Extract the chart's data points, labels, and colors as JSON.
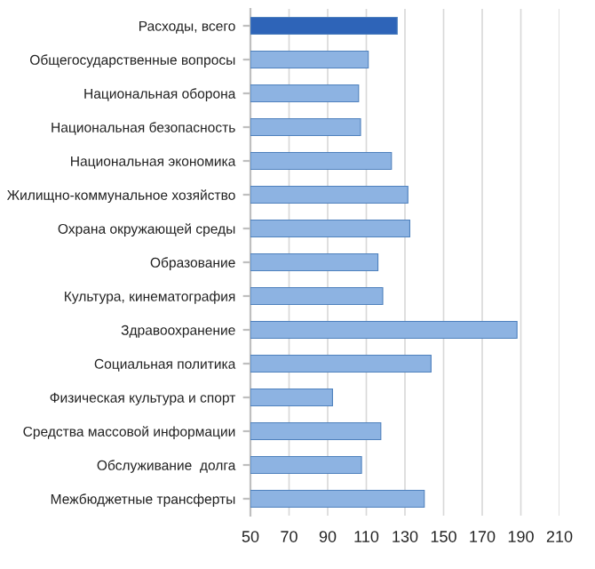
{
  "chart_data": {
    "type": "bar",
    "orientation": "horizontal",
    "categories": [
      "Расходы, всего",
      "Общегосударственные вопросы",
      "Национальная оборона",
      "Национальная безопасность",
      "Национальная экономика",
      "Жилищно-коммунальное хозяйство",
      "Охрана окружающей среды",
      "Образование",
      "Культура, кинематография",
      "Здравоохранение",
      "Социальная политика",
      "Физическая культура и спорт",
      "Средства массовой информации",
      "Обслуживание  долга",
      "Межбюджетные трансферты"
    ],
    "values": [
      126,
      111,
      106,
      107,
      123,
      131.5,
      132.5,
      116,
      118.5,
      188,
      143.5,
      92.5,
      117.5,
      107.5,
      140
    ],
    "colors": [
      "#2e64b8",
      "#8db3e2",
      "#8db3e2",
      "#8db3e2",
      "#8db3e2",
      "#8db3e2",
      "#8db3e2",
      "#8db3e2",
      "#8db3e2",
      "#8db3e2",
      "#8db3e2",
      "#8db3e2",
      "#8db3e2",
      "#8db3e2",
      "#8db3e2"
    ],
    "xlim": [
      50,
      210
    ],
    "xticks": [
      50,
      70,
      90,
      110,
      130,
      150,
      170,
      190,
      210
    ],
    "grid": "x"
  }
}
